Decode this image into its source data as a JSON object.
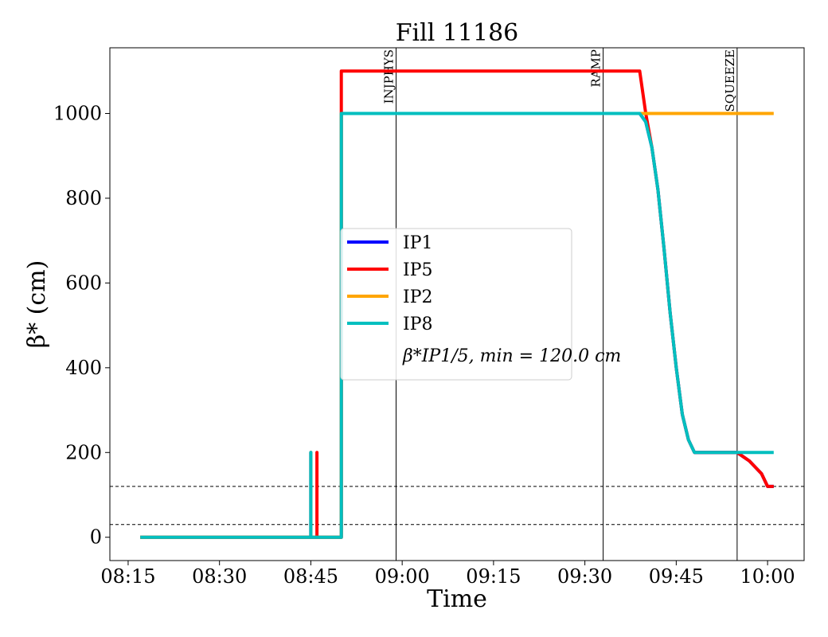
{
  "chart_data": {
    "type": "line",
    "title": "Fill 11186",
    "xlabel": "Time",
    "ylabel": "β* (cm)",
    "x_ticks": [
      "08:15",
      "08:30",
      "08:45",
      "09:00",
      "09:15",
      "09:30",
      "09:45",
      "10:00"
    ],
    "y_ticks": [
      0,
      200,
      400,
      600,
      800,
      1000
    ],
    "xlim": [
      "08:12",
      "10:06"
    ],
    "ylim": [
      -55,
      1155
    ],
    "grid": false,
    "legend_position": "center",
    "series": [
      {
        "name": "IP1",
        "color": "#0000ff",
        "points": [
          [
            "08:17",
            0
          ],
          [
            "08:45",
            0
          ],
          [
            "08:45",
            200
          ],
          [
            "08:45",
            0
          ],
          [
            "08:50",
            0
          ],
          [
            "08:50",
            1000
          ],
          [
            "09:39",
            1000
          ],
          [
            "09:40",
            980
          ],
          [
            "09:41",
            920
          ],
          [
            "09:42",
            820
          ],
          [
            "09:43",
            680
          ],
          [
            "09:44",
            530
          ],
          [
            "09:45",
            400
          ],
          [
            "09:46",
            290
          ],
          [
            "09:47",
            230
          ],
          [
            "09:48",
            200
          ],
          [
            "09:55",
            200
          ],
          [
            "09:57",
            180
          ],
          [
            "09:59",
            150
          ],
          [
            "10:00",
            120
          ],
          [
            "10:01",
            120
          ]
        ]
      },
      {
        "name": "IP5",
        "color": "#ff0000",
        "points": [
          [
            "08:17",
            0
          ],
          [
            "08:46",
            0
          ],
          [
            "08:46",
            200
          ],
          [
            "08:46",
            0
          ],
          [
            "08:50",
            0
          ],
          [
            "08:50",
            1100
          ],
          [
            "09:39",
            1100
          ],
          [
            "09:40",
            1000
          ],
          [
            "09:41",
            920
          ],
          [
            "09:42",
            820
          ],
          [
            "09:43",
            680
          ],
          [
            "09:44",
            530
          ],
          [
            "09:45",
            400
          ],
          [
            "09:46",
            290
          ],
          [
            "09:47",
            230
          ],
          [
            "09:48",
            200
          ],
          [
            "09:55",
            200
          ],
          [
            "09:57",
            180
          ],
          [
            "09:59",
            150
          ],
          [
            "10:00",
            120
          ],
          [
            "10:01",
            120
          ]
        ]
      },
      {
        "name": "IP2",
        "color": "#ffa500",
        "points": [
          [
            "08:17",
            0
          ],
          [
            "08:45",
            0
          ],
          [
            "08:45",
            200
          ],
          [
            "08:45",
            0
          ],
          [
            "08:50",
            0
          ],
          [
            "08:50",
            1000
          ],
          [
            "10:01",
            1000
          ]
        ]
      },
      {
        "name": "IP8",
        "color": "#00bfbf",
        "points": [
          [
            "08:17",
            0
          ],
          [
            "08:45",
            0
          ],
          [
            "08:45",
            200
          ],
          [
            "08:45",
            0
          ],
          [
            "08:50",
            0
          ],
          [
            "08:50",
            1000
          ],
          [
            "09:39",
            1000
          ],
          [
            "09:40",
            980
          ],
          [
            "09:41",
            920
          ],
          [
            "09:42",
            820
          ],
          [
            "09:43",
            680
          ],
          [
            "09:44",
            530
          ],
          [
            "09:45",
            400
          ],
          [
            "09:46",
            290
          ],
          [
            "09:47",
            230
          ],
          [
            "09:48",
            200
          ],
          [
            "10:01",
            200
          ]
        ]
      }
    ],
    "legend_extra": "β*IP1/5, min = 120.0 cm",
    "vertical_markers": [
      {
        "label": "INJPHYS",
        "x": "08:59"
      },
      {
        "label": "RAMP",
        "x": "09:33"
      },
      {
        "label": "SQUEEZE",
        "x": "09:55"
      }
    ],
    "horizontal_reference_lines": [
      120,
      30
    ]
  }
}
